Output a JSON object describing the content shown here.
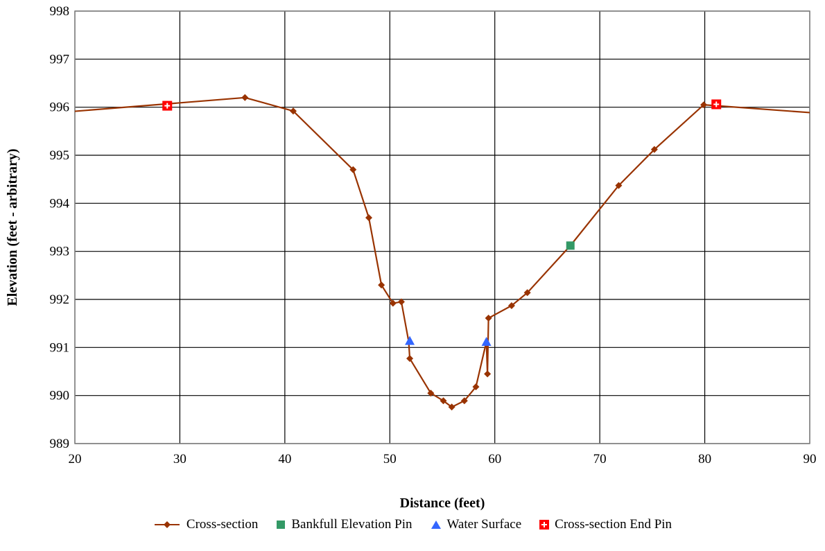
{
  "chart_data": {
    "type": "scatter",
    "title": "",
    "xlabel": "Distance (feet)",
    "ylabel": "Elevation (feet - arbitrary)",
    "xlim": [
      20,
      90
    ],
    "ylim": [
      989,
      998
    ],
    "xticks": [
      "20",
      "30",
      "40",
      "50",
      "60",
      "70",
      "80",
      "90"
    ],
    "yticks": [
      "989",
      "990",
      "991",
      "992",
      "993",
      "994",
      "995",
      "996",
      "997",
      "998"
    ],
    "grid": true,
    "legend_position": "bottom",
    "series": [
      {
        "name": "Cross-section",
        "style": "line-diamond",
        "color": "#993300",
        "x": [
          18,
          36.2,
          40.8,
          46.5,
          48.0,
          49.2,
          50.3,
          51.1,
          51.8,
          51.9,
          53.9,
          55.1,
          55.9,
          57.1,
          58.2,
          59.2,
          59.3,
          59.4,
          61.6,
          63.1,
          67.2,
          71.8,
          75.2,
          79.9,
          90.5
        ],
        "y": [
          995.88,
          996.2,
          995.92,
          994.7,
          993.7,
          992.3,
          991.92,
          991.95,
          991.12,
          990.77,
          990.05,
          989.89,
          989.76,
          989.89,
          990.18,
          991.12,
          990.45,
          991.61,
          991.87,
          992.14,
          993.12,
          994.37,
          995.12,
          996.05,
          995.88
        ],
        "markers_x": [
          36.2,
          40.8,
          46.5,
          48.0,
          49.2,
          50.3,
          51.1,
          51.9,
          53.9,
          55.1,
          55.9,
          57.1,
          58.2,
          59.4,
          59.3,
          61.6,
          63.1,
          71.8,
          75.2,
          79.9
        ],
        "markers_y": [
          996.2,
          995.92,
          994.7,
          993.7,
          992.3,
          991.92,
          991.95,
          990.77,
          990.05,
          989.89,
          989.76,
          989.89,
          990.18,
          991.61,
          990.45,
          991.87,
          992.14,
          994.37,
          995.12,
          996.05
        ]
      },
      {
        "name": "Bankfull Elevation Pin",
        "style": "square",
        "color": "#339966",
        "x": [
          67.2
        ],
        "y": [
          993.12
        ]
      },
      {
        "name": "Water Surface",
        "style": "triangle",
        "color": "#3366ff",
        "x": [
          51.9,
          59.2
        ],
        "y": [
          991.14,
          991.12
        ]
      },
      {
        "name": "Cross-section End Pin",
        "style": "cross-square",
        "color": "#ff0000",
        "x": [
          28.8,
          81.1
        ],
        "y": [
          996.03,
          996.06
        ]
      }
    ]
  }
}
